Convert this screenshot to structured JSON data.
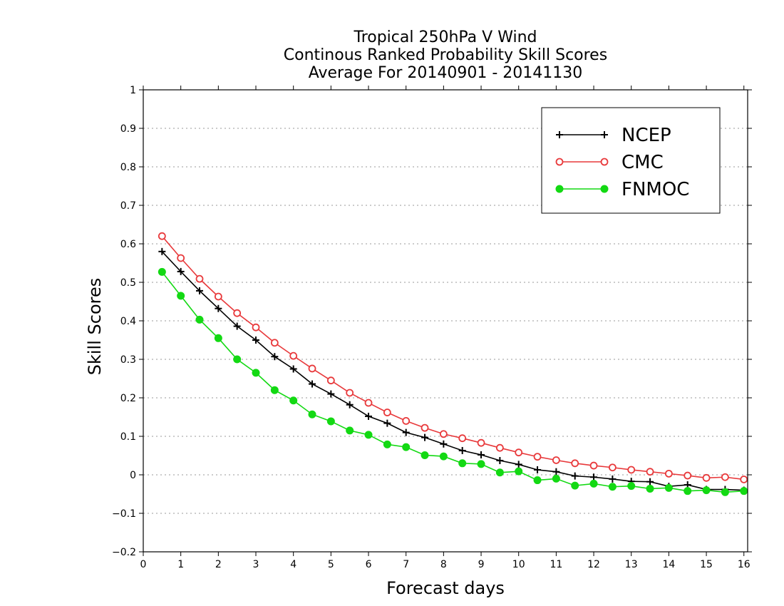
{
  "chart_data": {
    "type": "line",
    "title": [
      "Tropical 250hPa V Wind",
      "Continous Ranked Probability Skill Scores",
      "Average For 20140901 - 20141130"
    ],
    "xlabel": "Forecast days",
    "ylabel": "Skill Scores",
    "xlim": [
      0,
      16.1
    ],
    "ylim": [
      -0.2,
      1
    ],
    "xticks": [
      "0",
      "1",
      "2",
      "3",
      "4",
      "5",
      "6",
      "7",
      "8",
      "9",
      "10",
      "11",
      "12",
      "13",
      "14",
      "15",
      "16"
    ],
    "yticks": [
      "−0.2",
      "−0.1",
      "0",
      "0.1",
      "0.2",
      "0.3",
      "0.4",
      "0.5",
      "0.6",
      "0.7",
      "0.8",
      "0.9",
      "1"
    ],
    "grid": "horizontal dotted",
    "legend_position": "top-right",
    "x": [
      0.5,
      1,
      1.5,
      2,
      2.5,
      3,
      3.5,
      4,
      4.5,
      5,
      5.5,
      6,
      6.5,
      7,
      7.5,
      8,
      8.5,
      9,
      9.5,
      10,
      10.5,
      11,
      11.5,
      12,
      12.5,
      13,
      13.5,
      14,
      14.5,
      15,
      15.5,
      16
    ],
    "series": [
      {
        "name": "NCEP",
        "color": "#000000",
        "marker": "plus",
        "values": [
          0.58,
          0.528,
          0.478,
          0.432,
          0.386,
          0.35,
          0.307,
          0.275,
          0.236,
          0.21,
          0.182,
          0.152,
          0.134,
          0.11,
          0.097,
          0.08,
          0.063,
          0.052,
          0.037,
          0.027,
          0.013,
          0.008,
          -0.003,
          -0.006,
          -0.011,
          -0.017,
          -0.018,
          -0.03,
          -0.026,
          -0.038,
          -0.038,
          -0.04
        ]
      },
      {
        "name": "CMC",
        "color": "#e8393b",
        "marker": "open-circle",
        "values": [
          0.62,
          0.563,
          0.509,
          0.463,
          0.42,
          0.383,
          0.343,
          0.309,
          0.276,
          0.245,
          0.213,
          0.187,
          0.162,
          0.14,
          0.122,
          0.106,
          0.095,
          0.083,
          0.07,
          0.058,
          0.047,
          0.038,
          0.03,
          0.024,
          0.019,
          0.013,
          0.008,
          0.003,
          -0.002,
          -0.008,
          -0.006,
          -0.012
        ]
      },
      {
        "name": "FNMOC",
        "color": "#13d913",
        "marker": "filled-circle",
        "values": [
          0.527,
          0.465,
          0.403,
          0.355,
          0.3,
          0.265,
          0.22,
          0.193,
          0.157,
          0.139,
          0.115,
          0.104,
          0.079,
          0.072,
          0.051,
          0.048,
          0.03,
          0.028,
          0.006,
          0.009,
          -0.014,
          -0.01,
          -0.028,
          -0.023,
          -0.031,
          -0.029,
          -0.036,
          -0.034,
          -0.042,
          -0.04,
          -0.045,
          -0.042
        ]
      }
    ]
  }
}
